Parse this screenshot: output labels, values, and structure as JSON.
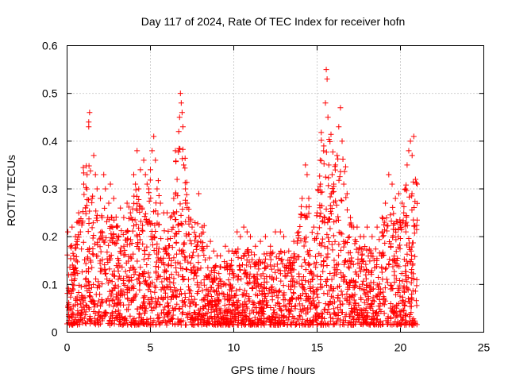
{
  "chart_data": {
    "type": "scatter",
    "title": "Day 117 of 2024, Rate Of TEC Index for receiver hofn",
    "xlabel": "GPS time / hours",
    "ylabel": "ROTI / TECUs",
    "xlim": [
      0,
      25
    ],
    "ylim": [
      0,
      0.6
    ],
    "x_ticks": [
      "0",
      "5",
      "10",
      "15",
      "20",
      "25"
    ],
    "x_tick_values": [
      0,
      5,
      10,
      15,
      20,
      25
    ],
    "y_ticks": [
      "0",
      "0.1",
      "0.2",
      "0.3",
      "0.4",
      "0.5",
      "0.6"
    ],
    "y_tick_values": [
      0,
      0.1,
      0.2,
      0.3,
      0.4,
      0.5,
      0.6
    ],
    "grid": true,
    "marker": "+",
    "color": "#ff0000",
    "x_max_observed": 21.0,
    "series": [
      {
        "values": [
          [
            0.05,
            0.21
          ],
          [
            0.1,
            0.12
          ],
          [
            0.2,
            0.18
          ],
          [
            0.3,
            0.22
          ],
          [
            0.4,
            0.16
          ],
          [
            0.5,
            0.2
          ],
          [
            0.6,
            0.23
          ],
          [
            0.7,
            0.25
          ],
          [
            0.8,
            0.21
          ],
          [
            1.0,
            0.31
          ],
          [
            1.1,
            0.26
          ],
          [
            1.2,
            0.33
          ],
          [
            1.3,
            0.44
          ],
          [
            1.35,
            0.46
          ],
          [
            1.3,
            0.43
          ],
          [
            1.5,
            0.28
          ],
          [
            1.6,
            0.37
          ],
          [
            1.7,
            0.33
          ],
          [
            1.8,
            0.3
          ],
          [
            2.0,
            0.28
          ],
          [
            2.1,
            0.24
          ],
          [
            2.2,
            0.33
          ],
          [
            2.3,
            0.3
          ],
          [
            2.5,
            0.27
          ],
          [
            2.6,
            0.31
          ],
          [
            2.8,
            0.28
          ],
          [
            3.0,
            0.22
          ],
          [
            3.2,
            0.26
          ],
          [
            3.4,
            0.24
          ],
          [
            3.6,
            0.27
          ],
          [
            3.8,
            0.25
          ],
          [
            4.0,
            0.33
          ],
          [
            4.1,
            0.31
          ],
          [
            4.2,
            0.38
          ],
          [
            4.3,
            0.3
          ],
          [
            4.4,
            0.34
          ],
          [
            4.5,
            0.26
          ],
          [
            4.6,
            0.36
          ],
          [
            4.7,
            0.33
          ],
          [
            4.8,
            0.31
          ],
          [
            4.9,
            0.3
          ],
          [
            5.0,
            0.34
          ],
          [
            5.1,
            0.38
          ],
          [
            5.2,
            0.41
          ],
          [
            5.3,
            0.36
          ],
          [
            5.4,
            0.3
          ],
          [
            5.6,
            0.27
          ],
          [
            5.8,
            0.25
          ],
          [
            6.0,
            0.25
          ],
          [
            6.2,
            0.24
          ],
          [
            6.4,
            0.28
          ],
          [
            6.6,
            0.32
          ],
          [
            6.7,
            0.42
          ],
          [
            6.75,
            0.45
          ],
          [
            6.8,
            0.5
          ],
          [
            6.85,
            0.48
          ],
          [
            6.9,
            0.46
          ],
          [
            6.95,
            0.43
          ],
          [
            7.0,
            0.35
          ],
          [
            7.1,
            0.3
          ],
          [
            7.2,
            0.27
          ],
          [
            7.3,
            0.24
          ],
          [
            7.5,
            0.22
          ],
          [
            7.7,
            0.2
          ],
          [
            7.9,
            0.29
          ],
          [
            8.1,
            0.22
          ],
          [
            8.4,
            0.18
          ],
          [
            8.6,
            0.19
          ],
          [
            8.8,
            0.17
          ],
          [
            9.0,
            0.16
          ],
          [
            9.2,
            0.16
          ],
          [
            9.5,
            0.18
          ],
          [
            9.7,
            0.17
          ],
          [
            9.9,
            0.17
          ],
          [
            10.2,
            0.21
          ],
          [
            10.4,
            0.2
          ],
          [
            10.6,
            0.22
          ],
          [
            10.8,
            0.21
          ],
          [
            11.0,
            0.2
          ],
          [
            11.3,
            0.18
          ],
          [
            11.6,
            0.19
          ],
          [
            11.9,
            0.2
          ],
          [
            12.2,
            0.18
          ],
          [
            12.5,
            0.21
          ],
          [
            12.8,
            0.21
          ],
          [
            13.0,
            0.2
          ],
          [
            13.3,
            0.17
          ],
          [
            13.6,
            0.19
          ],
          [
            13.9,
            0.21
          ],
          [
            14.1,
            0.28
          ],
          [
            14.3,
            0.35
          ],
          [
            14.4,
            0.33
          ],
          [
            14.5,
            0.28
          ],
          [
            14.8,
            0.22
          ],
          [
            15.0,
            0.25
          ],
          [
            15.2,
            0.31
          ],
          [
            15.4,
            0.39
          ],
          [
            15.5,
            0.48
          ],
          [
            15.55,
            0.55
          ],
          [
            15.6,
            0.53
          ],
          [
            15.65,
            0.45
          ],
          [
            15.7,
            0.35
          ],
          [
            15.9,
            0.33
          ],
          [
            16.0,
            0.31
          ],
          [
            16.1,
            0.35
          ],
          [
            16.2,
            0.37
          ],
          [
            16.3,
            0.43
          ],
          [
            16.4,
            0.47
          ],
          [
            16.5,
            0.4
          ],
          [
            16.6,
            0.31
          ],
          [
            16.8,
            0.29
          ],
          [
            17.0,
            0.24
          ],
          [
            17.2,
            0.22
          ],
          [
            17.4,
            0.22
          ],
          [
            17.6,
            0.2
          ],
          [
            17.8,
            0.2
          ],
          [
            18.0,
            0.22
          ],
          [
            18.3,
            0.2
          ],
          [
            18.6,
            0.22
          ],
          [
            18.9,
            0.24
          ],
          [
            19.1,
            0.27
          ],
          [
            19.3,
            0.33
          ],
          [
            19.5,
            0.31
          ],
          [
            19.7,
            0.28
          ],
          [
            19.9,
            0.29
          ],
          [
            20.0,
            0.23
          ],
          [
            20.1,
            0.27
          ],
          [
            20.2,
            0.25
          ],
          [
            20.3,
            0.3
          ],
          [
            20.4,
            0.35
          ],
          [
            20.5,
            0.38
          ],
          [
            20.6,
            0.4
          ],
          [
            20.7,
            0.37
          ],
          [
            20.8,
            0.41
          ],
          [
            20.9,
            0.32
          ],
          [
            21.0,
            0.31
          ]
        ]
      }
    ]
  }
}
